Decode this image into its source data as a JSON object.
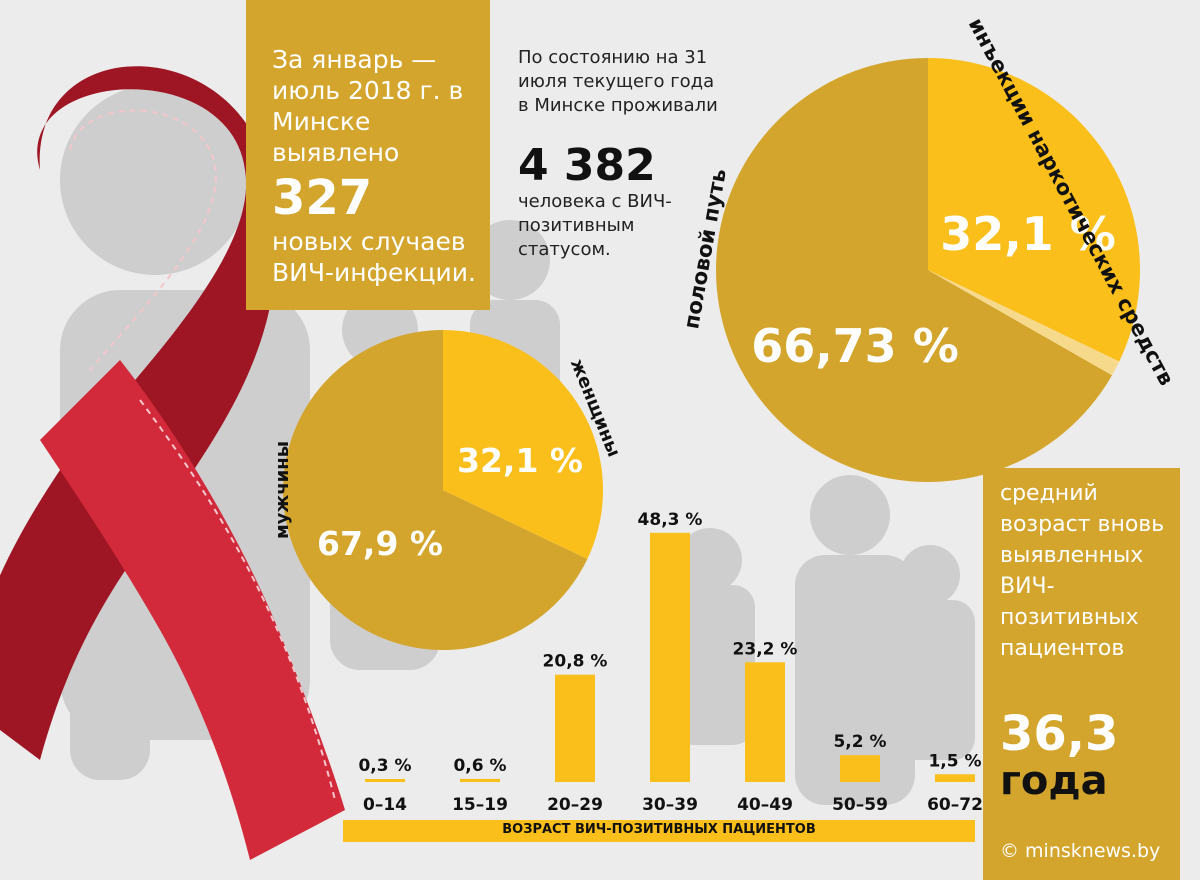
{
  "headline": {
    "line1": "За январь — июль 2018 г. в Минске выявлено",
    "number": "327",
    "line2": "новых случаев ВИЧ-инфекции."
  },
  "population": {
    "line1": "По состоянию на 31 июля текущего года в Минске проживали",
    "number": "4 382",
    "line2": "человека с ВИЧ-позитивным статусом."
  },
  "average_age": {
    "line1": "средний возраст вновь выявленных ВИЧ-позитивных пациентов",
    "number": "36,3",
    "unit": "года"
  },
  "source": "© minsknews.by",
  "colors": {
    "gold": "#d4a52c",
    "yellow": "#fbbf1b",
    "pale": "#f7d98c",
    "ribbon": "#b81d2b",
    "figure": "#c9c9c9"
  },
  "chart_data": [
    {
      "type": "pie",
      "title": "",
      "labels": [
        "половой путь",
        "инъекции наркотических средств",
        ""
      ],
      "values": [
        66.73,
        32.1,
        1.17
      ],
      "value_labels": [
        "66,73 %",
        "32,1 %",
        ""
      ]
    },
    {
      "type": "pie",
      "title": "",
      "labels": [
        "мужчины",
        "женщины"
      ],
      "values": [
        67.9,
        32.1
      ],
      "value_labels": [
        "67,9 %",
        "32,1 %"
      ]
    },
    {
      "type": "bar",
      "title": "",
      "xlabel": "ВОЗРАСТ ВИЧ-ПОЗИТИВНЫХ ПАЦИЕНТОВ",
      "ylabel": "",
      "categories": [
        "0–14",
        "15–19",
        "20–29",
        "30–39",
        "40–49",
        "50–59",
        "60–72"
      ],
      "values": [
        0.3,
        0.6,
        20.8,
        48.3,
        23.2,
        5.2,
        1.5
      ],
      "value_labels": [
        "0,3 %",
        "0,6 %",
        "20,8 %",
        "48,3 %",
        "23,2 %",
        "5,2 %",
        "1,5 %"
      ],
      "ylim": [
        0,
        50
      ]
    }
  ]
}
